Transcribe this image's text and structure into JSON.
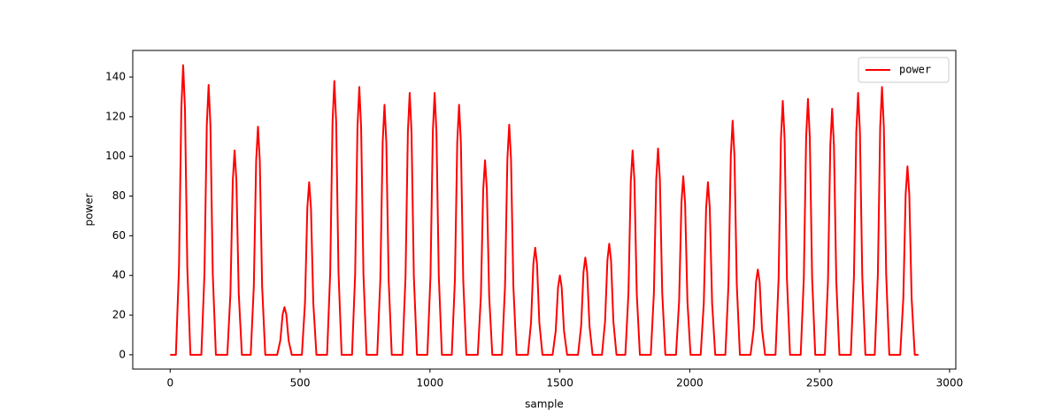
{
  "chart_data": {
    "type": "line",
    "xlabel": "sample",
    "ylabel": "power",
    "xlim": [
      -144,
      3024
    ],
    "ylim": [
      -7.2,
      153.4
    ],
    "xticks": [
      0,
      500,
      1000,
      1500,
      2000,
      2500,
      3000
    ],
    "yticks": [
      0,
      20,
      40,
      60,
      80,
      100,
      120,
      140
    ],
    "legend": "upper right",
    "series": [
      {
        "name": "power",
        "color": "#ff0000",
        "x": [
          0,
          22,
          34,
          43,
          50,
          57,
          66,
          78,
          120,
          132,
          141,
          148,
          155,
          164,
          176,
          220,
          232,
          241,
          248,
          255,
          264,
          276,
          310,
          322,
          331,
          338,
          345,
          354,
          366,
          412,
          424,
          433,
          440,
          447,
          456,
          468,
          507,
          519,
          528,
          535,
          542,
          551,
          563,
          604,
          616,
          625,
          632,
          639,
          648,
          660,
          700,
          712,
          721,
          728,
          735,
          744,
          756,
          797,
          809,
          818,
          825,
          832,
          841,
          853,
          894,
          906,
          915,
          922,
          929,
          938,
          950,
          990,
          1002,
          1011,
          1018,
          1025,
          1034,
          1046,
          1084,
          1096,
          1105,
          1112,
          1119,
          1128,
          1140,
          1184,
          1196,
          1205,
          1212,
          1219,
          1228,
          1240,
          1277,
          1289,
          1298,
          1305,
          1312,
          1321,
          1333,
          1377,
          1389,
          1398,
          1405,
          1412,
          1421,
          1433,
          1472,
          1484,
          1493,
          1500,
          1507,
          1516,
          1528,
          1570,
          1582,
          1591,
          1598,
          1605,
          1614,
          1626,
          1662,
          1674,
          1683,
          1690,
          1697,
          1706,
          1718,
          1752,
          1764,
          1773,
          1780,
          1787,
          1796,
          1808,
          1850,
          1862,
          1871,
          1878,
          1885,
          1894,
          1906,
          1947,
          1959,
          1968,
          1975,
          1982,
          1991,
          2003,
          2042,
          2054,
          2063,
          2070,
          2077,
          2086,
          2098,
          2137,
          2149,
          2158,
          2165,
          2172,
          2181,
          2193,
          2234,
          2246,
          2255,
          2262,
          2269,
          2278,
          2290,
          2330,
          2342,
          2351,
          2358,
          2365,
          2374,
          2386,
          2427,
          2439,
          2448,
          2455,
          2462,
          2471,
          2483,
          2520,
          2532,
          2541,
          2548,
          2555,
          2564,
          2576,
          2620,
          2632,
          2641,
          2648,
          2655,
          2664,
          2676,
          2712,
          2724,
          2733,
          2740,
          2747,
          2756,
          2768,
          2810,
          2822,
          2831,
          2838,
          2845,
          2854,
          2866,
          2880
        ],
        "values": [
          0,
          0,
          43.8,
          124.1,
          146,
          124.1,
          43.8,
          0,
          0,
          40.8,
          115.6,
          136,
          115.6,
          40.8,
          0,
          0,
          30.9,
          87.6,
          103,
          87.6,
          30.9,
          0,
          0,
          34.5,
          97.8,
          115,
          97.8,
          34.5,
          0,
          0,
          7.2,
          20.4,
          24,
          20.4,
          7.2,
          0,
          0,
          26.1,
          74,
          87,
          74,
          26.1,
          0,
          0,
          41.4,
          117.3,
          138,
          117.3,
          41.4,
          0,
          0,
          40.5,
          114.8,
          135,
          114.8,
          40.5,
          0,
          0,
          37.8,
          107.1,
          126,
          107.1,
          37.8,
          0,
          0,
          39.6,
          112.2,
          132,
          112.2,
          39.6,
          0,
          0,
          39.6,
          112.2,
          132,
          112.2,
          39.6,
          0,
          0,
          37.8,
          107.1,
          126,
          107.1,
          37.8,
          0,
          0,
          29.4,
          83.3,
          98,
          83.3,
          29.4,
          0,
          0,
          34.8,
          98.6,
          116,
          98.6,
          34.8,
          0,
          0,
          16.2,
          45.9,
          54,
          45.9,
          16.2,
          0,
          0,
          12,
          34,
          40,
          34,
          12,
          0,
          0,
          14.7,
          41.7,
          49,
          41.7,
          14.7,
          0,
          0,
          16.8,
          47.6,
          56,
          47.6,
          16.8,
          0,
          0,
          30.9,
          87.6,
          103,
          87.6,
          30.9,
          0,
          0,
          31.2,
          88.4,
          104,
          88.4,
          31.2,
          0,
          0,
          27,
          76.5,
          90,
          76.5,
          27,
          0,
          0,
          26.1,
          74,
          87,
          74,
          26.1,
          0,
          0,
          35.4,
          100.3,
          118,
          100.3,
          35.4,
          0,
          0,
          12.9,
          36.6,
          43,
          36.6,
          12.9,
          0,
          0,
          38.4,
          108.8,
          128,
          108.8,
          38.4,
          0,
          0,
          38.7,
          109.7,
          129,
          109.7,
          38.7,
          0,
          0,
          37.2,
          105.4,
          124,
          105.4,
          37.2,
          0,
          0,
          39.6,
          112.2,
          132,
          112.2,
          39.6,
          0,
          0,
          40.5,
          114.8,
          135,
          114.8,
          40.5,
          0,
          0,
          28.5,
          80.8,
          95,
          80.8,
          28.5,
          0,
          0
        ]
      }
    ]
  }
}
